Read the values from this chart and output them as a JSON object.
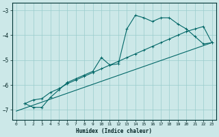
{
  "xlabel": "Humidex (Indice chaleur)",
  "bg_color": "#cce8e8",
  "grid_color": "#99cccc",
  "line_color": "#006666",
  "xlim": [
    -0.5,
    23.5
  ],
  "ylim": [
    -7.4,
    -2.7
  ],
  "yticks": [
    -7,
    -6,
    -5,
    -4,
    -3
  ],
  "xticks": [
    0,
    1,
    2,
    3,
    4,
    5,
    6,
    7,
    8,
    9,
    10,
    11,
    12,
    13,
    14,
    15,
    16,
    17,
    18,
    19,
    20,
    21,
    22,
    23
  ],
  "line1_x": [
    0,
    23
  ],
  "line1_y": [
    -7.05,
    -4.3
  ],
  "line2_x": [
    1,
    2,
    3,
    4,
    5,
    6,
    7,
    8,
    9,
    10,
    11,
    12,
    13,
    14,
    15,
    16,
    17,
    18,
    19,
    20,
    21,
    22,
    23
  ],
  "line2_y": [
    -6.75,
    -6.6,
    -6.55,
    -6.3,
    -6.15,
    -5.95,
    -5.8,
    -5.65,
    -5.5,
    -5.35,
    -5.2,
    -5.05,
    -4.9,
    -4.75,
    -4.6,
    -4.45,
    -4.3,
    -4.15,
    -4.0,
    -3.85,
    -3.75,
    -3.65,
    -4.3
  ],
  "line3_x": [
    1,
    2,
    3,
    4,
    5,
    6,
    7,
    8,
    9,
    10,
    11,
    12,
    13,
    14,
    15,
    16,
    17,
    18,
    19,
    20,
    21,
    22,
    23
  ],
  "line3_y": [
    -6.75,
    -6.9,
    -6.9,
    -6.5,
    -6.2,
    -5.9,
    -5.75,
    -5.6,
    -5.45,
    -4.9,
    -5.2,
    -5.15,
    -3.75,
    -3.2,
    -3.3,
    -3.45,
    -3.3,
    -3.3,
    -3.55,
    -3.75,
    -4.05,
    -4.35,
    -4.3
  ]
}
